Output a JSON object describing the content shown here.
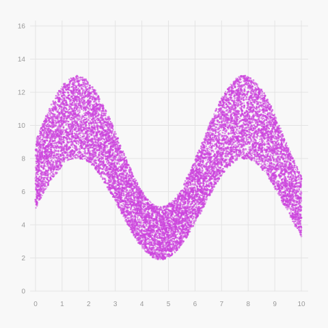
{
  "chart_data": {
    "type": "scatter",
    "title": "",
    "xlabel": "",
    "ylabel": "",
    "xlim": [
      0,
      10
    ],
    "ylim": [
      0,
      16
    ],
    "x_ticks": [
      "0",
      "1",
      "2",
      "3",
      "4",
      "5",
      "6",
      "7",
      "8",
      "9",
      "10"
    ],
    "y_ticks": [
      "0",
      "2",
      "4",
      "6",
      "8",
      "10",
      "12",
      "14",
      "16"
    ],
    "grid": true,
    "legend": "none",
    "series": [
      {
        "color": "#cc44dd",
        "point_count": 12000,
        "distribution": "band y = 7 + 3.5·sin(x) ± 2.5·(0.8 + 0.2·sin(x))",
        "x_range": [
          0,
          10
        ],
        "y_envelope_samples": {
          "x": [
            0,
            1,
            1.57,
            2,
            3,
            4,
            4.71,
            5,
            6,
            7,
            7.85,
            9,
            10
          ],
          "y_low": [
            4.5,
            7.9,
            8.4,
            8.2,
            5.8,
            2.0,
            0.5,
            0.9,
            4.2,
            7.8,
            8.4,
            6.0,
            2.6
          ],
          "y_high": [
            9.5,
            12.9,
            13.5,
            13.3,
            10.5,
            6.5,
            5.5,
            5.9,
            8.0,
            12.2,
            13.5,
            11.0,
            7.4
          ]
        }
      }
    ]
  },
  "colors": {
    "background": "#f8f8f8",
    "grid": "#e3e3e3",
    "tick_text": "#999999",
    "point": "#cc44dd"
  }
}
